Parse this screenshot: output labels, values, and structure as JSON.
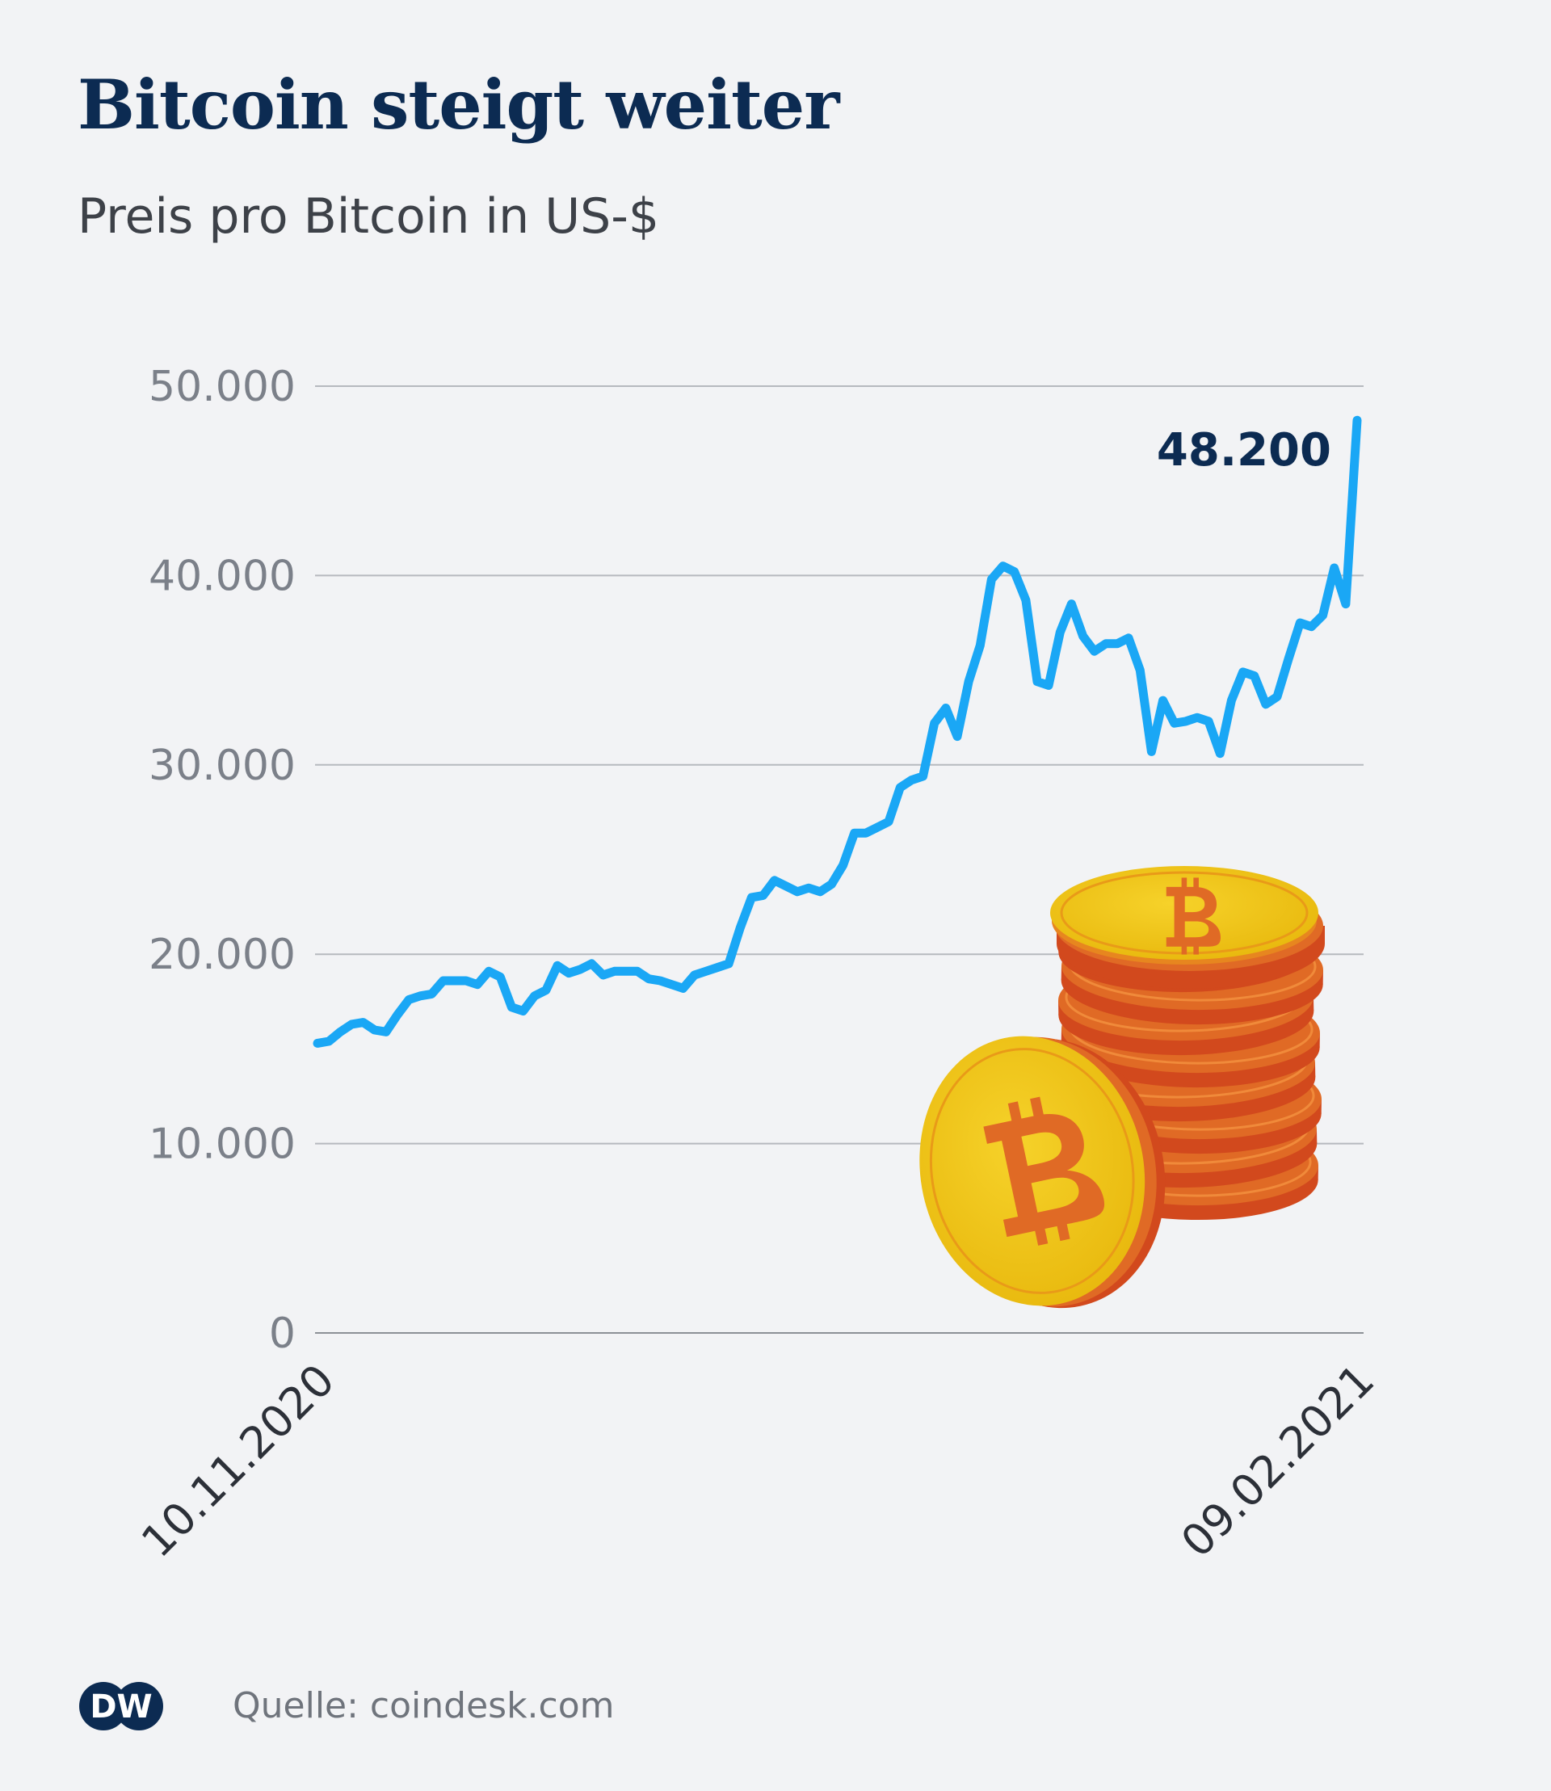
{
  "header": {
    "title": "Bitcoin steigt weiter",
    "subtitle": "Preis pro Bitcoin in US-$"
  },
  "footer": {
    "logo_text": "DW",
    "source": "Quelle: coindesk.com"
  },
  "colors": {
    "line": "#1aa7f5",
    "title": "#0c2b52",
    "grid": "#b6b9be",
    "coin_gold": "#f0c613",
    "coin_orange": "#e06a25",
    "coin_dark": "#d2491d"
  },
  "chart_data": {
    "type": "line",
    "title": "Bitcoin steigt weiter",
    "subtitle": "Preis pro Bitcoin in US-$",
    "xlabel": "",
    "ylabel": "",
    "x_range": [
      "10.11.2020",
      "09.02.2021"
    ],
    "x_tick_labels": [
      "10.11.2020",
      "09.02.2021"
    ],
    "ylim": [
      0,
      50000
    ],
    "y_ticks": [
      0,
      10000,
      20000,
      30000,
      40000,
      50000
    ],
    "y_tick_labels": [
      "0",
      "10.000",
      "20.000",
      "30.000",
      "40.000",
      "50.000"
    ],
    "grid": true,
    "annotation": {
      "label": "48.200",
      "value": 48200,
      "date": "09.02.2021"
    },
    "series": [
      {
        "points": [
          [
            "10.11.2020",
            15300
          ],
          [
            "11.11.2020",
            15400
          ],
          [
            "12.11.2020",
            15900
          ],
          [
            "13.11.2020",
            16300
          ],
          [
            "14.11.2020",
            16400
          ],
          [
            "15.11.2020",
            16000
          ],
          [
            "16.11.2020",
            15900
          ],
          [
            "17.11.2020",
            16800
          ],
          [
            "18.11.2020",
            17600
          ],
          [
            "19.11.2020",
            17800
          ],
          [
            "20.11.2020",
            17900
          ],
          [
            "21.11.2020",
            18600
          ],
          [
            "22.11.2020",
            18600
          ],
          [
            "23.11.2020",
            18600
          ],
          [
            "24.11.2020",
            18400
          ],
          [
            "25.11.2020",
            19100
          ],
          [
            "26.11.2020",
            18800
          ],
          [
            "27.11.2020",
            17200
          ],
          [
            "28.11.2020",
            17000
          ],
          [
            "29.11.2020",
            17800
          ],
          [
            "30.11.2020",
            18100
          ],
          [
            "01.12.2020",
            19400
          ],
          [
            "02.12.2020",
            19000
          ],
          [
            "03.12.2020",
            19200
          ],
          [
            "04.12.2020",
            19500
          ],
          [
            "05.12.2020",
            18900
          ],
          [
            "06.12.2020",
            19100
          ],
          [
            "07.12.2020",
            19100
          ],
          [
            "08.12.2020",
            19100
          ],
          [
            "09.12.2020",
            18700
          ],
          [
            "10.12.2020",
            18600
          ],
          [
            "11.12.2020",
            18400
          ],
          [
            "12.12.2020",
            18200
          ],
          [
            "13.12.2020",
            18900
          ],
          [
            "14.12.2020",
            19100
          ],
          [
            "15.12.2020",
            19300
          ],
          [
            "16.12.2020",
            19500
          ],
          [
            "17.12.2020",
            21400
          ],
          [
            "18.12.2020",
            23000
          ],
          [
            "19.12.2020",
            23100
          ],
          [
            "20.12.2020",
            23900
          ],
          [
            "21.12.2020",
            23600
          ],
          [
            "22.12.2020",
            23300
          ],
          [
            "23.12.2020",
            23500
          ],
          [
            "24.12.2020",
            23300
          ],
          [
            "25.12.2020",
            23700
          ],
          [
            "26.12.2020",
            24700
          ],
          [
            "27.12.2020",
            26400
          ],
          [
            "28.12.2020",
            26400
          ],
          [
            "29.12.2020",
            26700
          ],
          [
            "30.12.2020",
            27000
          ],
          [
            "31.12.2020",
            28800
          ],
          [
            "01.01.2021",
            29200
          ],
          [
            "02.01.2021",
            29400
          ],
          [
            "03.01.2021",
            32200
          ],
          [
            "04.01.2021",
            33000
          ],
          [
            "05.01.2021",
            31500
          ],
          [
            "06.01.2021",
            34400
          ],
          [
            "07.01.2021",
            36300
          ],
          [
            "08.01.2021",
            39800
          ],
          [
            "09.01.2021",
            40500
          ],
          [
            "10.01.2021",
            40200
          ],
          [
            "11.01.2021",
            38700
          ],
          [
            "12.01.2021",
            34400
          ],
          [
            "13.01.2021",
            34200
          ],
          [
            "14.01.2021",
            37000
          ],
          [
            "15.01.2021",
            38500
          ],
          [
            "16.01.2021",
            36800
          ],
          [
            "17.01.2021",
            36000
          ],
          [
            "18.01.2021",
            36400
          ],
          [
            "19.01.2021",
            36400
          ],
          [
            "20.01.2021",
            36700
          ],
          [
            "21.01.2021",
            35000
          ],
          [
            "22.01.2021",
            30700
          ],
          [
            "23.01.2021",
            33400
          ],
          [
            "24.01.2021",
            32200
          ],
          [
            "25.01.2021",
            32300
          ],
          [
            "26.01.2021",
            32500
          ],
          [
            "27.01.2021",
            32300
          ],
          [
            "28.01.2021",
            30600
          ],
          [
            "29.01.2021",
            33400
          ],
          [
            "30.01.2021",
            34900
          ],
          [
            "31.01.2021",
            34700
          ],
          [
            "01.02.2021",
            33200
          ],
          [
            "02.02.2021",
            33600
          ],
          [
            "03.02.2021",
            35600
          ],
          [
            "04.02.2021",
            37500
          ],
          [
            "05.02.2021",
            37300
          ],
          [
            "06.02.2021",
            37900
          ],
          [
            "07.02.2021",
            40400
          ],
          [
            "08.02.2021",
            38500
          ],
          [
            "09.02.2021",
            48200
          ]
        ]
      }
    ]
  }
}
